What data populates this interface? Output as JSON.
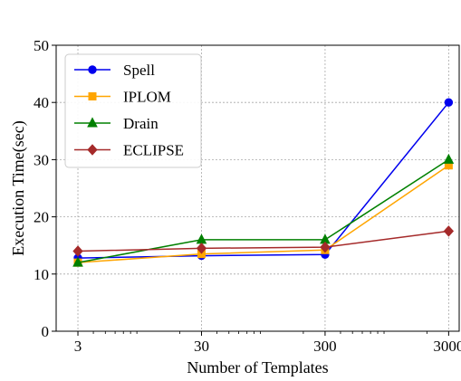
{
  "chart_data": {
    "type": "line",
    "title": "",
    "xlabel": "Number of Templates",
    "ylabel": "Execution Time(sec)",
    "x_scale": "log",
    "x": [
      3,
      30,
      300,
      3000
    ],
    "x_tick_labels": [
      "3",
      "30",
      "300",
      "3000"
    ],
    "y_ticks": [
      0,
      10,
      20,
      30,
      40,
      50
    ],
    "y_tick_labels": [
      "0",
      "10",
      "20",
      "30",
      "40",
      "50"
    ],
    "ylim": [
      0,
      50
    ],
    "grid": true,
    "legend_position": "top-left",
    "series": [
      {
        "name": "Spell",
        "color": "#0000ee",
        "marker": "circle",
        "values": [
          12.8,
          13.2,
          13.4,
          40.0
        ]
      },
      {
        "name": "IPLOM",
        "color": "#ffa500",
        "marker": "square",
        "values": [
          12.0,
          13.5,
          14.2,
          29.0
        ]
      },
      {
        "name": "Drain",
        "color": "#008000",
        "marker": "triangle",
        "values": [
          12.0,
          16.0,
          16.0,
          30.0
        ]
      },
      {
        "name": "ECLIPSE",
        "color": "#a52a2a",
        "marker": "diamond",
        "values": [
          14.0,
          14.5,
          14.7,
          17.5
        ]
      }
    ]
  }
}
